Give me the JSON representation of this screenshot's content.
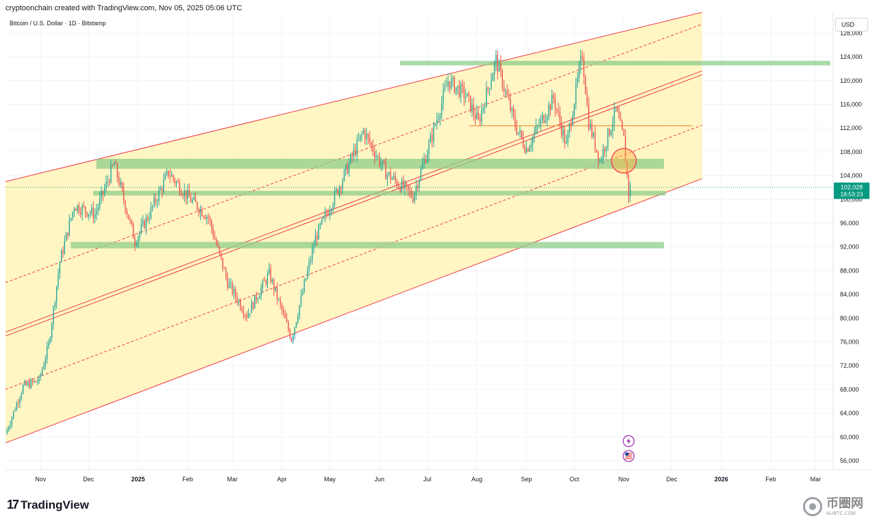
{
  "header": {
    "attribution": "cryptoonchain created with TradingView.com, Nov 05, 2025 05:06 UTC",
    "symbol": "Bitcoin / U.S. Dollar · 1D · Bitstamp",
    "currency": "USD"
  },
  "footer": {
    "logo_text": "TradingView"
  },
  "watermark": {
    "main": "币圈网",
    "sub": "ALIBTC.COM"
  },
  "colors": {
    "up": "#26a69a",
    "down": "#ef5350",
    "channel_fill": "#fff3b0",
    "channel_line": "#f23645",
    "zone_fill": "#8fcf8a",
    "orange_line": "#f0a050",
    "price_label": "#089981"
  },
  "chart_data": {
    "type": "candlestick",
    "title": "Bitcoin / U.S. Dollar · 1D · Bitstamp",
    "ylim": [
      54500,
      131500
    ],
    "y_ticks": [
      56000,
      60000,
      64000,
      68000,
      72000,
      76000,
      80000,
      84000,
      88000,
      92000,
      96000,
      100000,
      104000,
      108000,
      112000,
      116000,
      120000,
      124000,
      128000
    ],
    "y_tick_labels": [
      "56,000",
      "60,000",
      "64,000",
      "68,000",
      "72,000",
      "76,000",
      "80,000",
      "84,000",
      "88,000",
      "92,000",
      "96,000",
      "100,000",
      "104,000",
      "108,000",
      "112,000",
      "116,000",
      "120,000",
      "124,000",
      "128,000"
    ],
    "x_ticks": [
      {
        "label": "Nov",
        "date": "2024-11-01"
      },
      {
        "label": "Dec",
        "date": "2024-12-01"
      },
      {
        "label": "2025",
        "date": "2025-01-01"
      },
      {
        "label": "Feb",
        "date": "2025-02-01"
      },
      {
        "label": "Mar",
        "date": "2025-03-01"
      },
      {
        "label": "Apr",
        "date": "2025-04-01"
      },
      {
        "label": "May",
        "date": "2025-05-01"
      },
      {
        "label": "Jun",
        "date": "2025-06-01"
      },
      {
        "label": "Jul",
        "date": "2025-07-01"
      },
      {
        "label": "Aug",
        "date": "2025-08-01"
      },
      {
        "label": "Sep",
        "date": "2025-09-01"
      },
      {
        "label": "Oct",
        "date": "2025-10-01"
      },
      {
        "label": "Nov",
        "date": "2025-11-01"
      },
      {
        "label": "Dec",
        "date": "2025-12-01"
      },
      {
        "label": "2026",
        "date": "2026-01-01"
      },
      {
        "label": "Feb",
        "date": "2026-02-01"
      },
      {
        "label": "Mar",
        "date": "2026-03-01"
      }
    ],
    "x_range": [
      "2024-10-10",
      "2026-03-12"
    ],
    "price_path": [
      [
        "2024-10-10",
        60500
      ],
      [
        "2024-10-21",
        68500
      ],
      [
        "2024-10-31",
        69500
      ],
      [
        "2024-11-06",
        75500
      ],
      [
        "2024-11-13",
        89500
      ],
      [
        "2024-11-22",
        99000
      ],
      [
        "2024-12-05",
        97500
      ],
      [
        "2024-12-17",
        106000
      ],
      [
        "2024-12-30",
        93000
      ],
      [
        "2025-01-07",
        97000
      ],
      [
        "2025-01-20",
        104500
      ],
      [
        "2025-02-01",
        100500
      ],
      [
        "2025-02-14",
        97000
      ],
      [
        "2025-02-26",
        86000
      ],
      [
        "2025-03-10",
        80500
      ],
      [
        "2025-03-24",
        87500
      ],
      [
        "2025-04-07",
        76500
      ],
      [
        "2025-04-22",
        93500
      ],
      [
        "2025-05-09",
        103500
      ],
      [
        "2025-05-22",
        111500
      ],
      [
        "2025-06-05",
        104500
      ],
      [
        "2025-06-22",
        100500
      ],
      [
        "2025-07-02",
        109000
      ],
      [
        "2025-07-14",
        120000
      ],
      [
        "2025-07-25",
        117500
      ],
      [
        "2025-08-02",
        113000
      ],
      [
        "2025-08-13",
        123500
      ],
      [
        "2025-08-25",
        112500
      ],
      [
        "2025-09-01",
        108500
      ],
      [
        "2025-09-18",
        117000
      ],
      [
        "2025-09-26",
        109000
      ],
      [
        "2025-10-06",
        124500
      ],
      [
        "2025-10-10",
        113000
      ],
      [
        "2025-10-17",
        106500
      ],
      [
        "2025-10-27",
        115000
      ],
      [
        "2025-11-01",
        110000
      ],
      [
        "2025-11-04",
        101000
      ],
      [
        "2025-11-05",
        102028
      ]
    ],
    "last_price": {
      "value": 102028,
      "label": "102,028",
      "countdown": "18:53:23"
    },
    "channel": {
      "upper": [
        [
          "2024-10-10",
          103000
        ],
        [
          "2025-12-20",
          131500
        ]
      ],
      "middle": [
        [
          "2024-10-10",
          77000
        ],
        [
          "2025-12-20",
          121000
        ]
      ],
      "lower": [
        [
          "2024-10-10",
          59000
        ],
        [
          "2025-12-20",
          103500
        ]
      ],
      "upper_quarter": [
        [
          "2024-10-10",
          86000
        ],
        [
          "2025-12-20",
          129500
        ]
      ],
      "lower_quarter": [
        [
          "2024-10-10",
          68000
        ],
        [
          "2025-12-20",
          112500
        ]
      ],
      "fill_until": "2025-12-20"
    },
    "zones": [
      {
        "from": "2025-06-14",
        "to": "2026-03-10",
        "y_low": 122700,
        "y_high": 123300
      },
      {
        "from": "2024-12-06",
        "to": "2025-11-26",
        "y_low": 105200,
        "y_high": 106800
      },
      {
        "from": "2024-12-04",
        "to": "2025-11-27",
        "y_low": 100700,
        "y_high": 101400
      },
      {
        "from": "2024-11-20",
        "to": "2025-11-26",
        "y_low": 91800,
        "y_high": 92800
      }
    ],
    "horizontal_lines": [
      {
        "from": "2025-07-27",
        "to": "2025-12-14",
        "y": 112400
      }
    ],
    "highlight_circle": {
      "date": "2025-11-01",
      "y": 106500
    },
    "event_icons": [
      {
        "date": "2025-11-01",
        "y": 59300,
        "name": "lightning-event-icon"
      },
      {
        "date": "2025-11-01",
        "y": 56800,
        "name": "us-flag-event-icon"
      }
    ]
  }
}
